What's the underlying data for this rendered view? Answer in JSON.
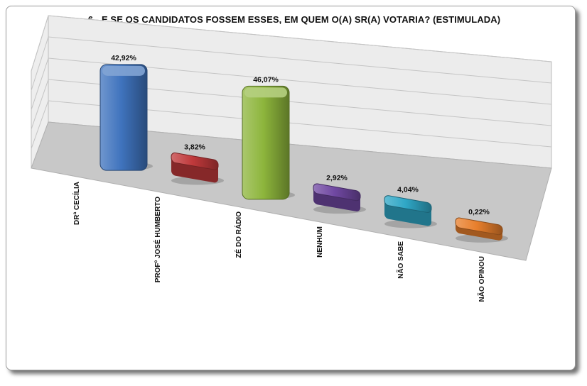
{
  "chart_data": {
    "type": "bar",
    "title": "6 - E SE OS CANDIDATOS FOSSEM ESSES, EM QUEM O(A) SR(A) VOTARIA? (ESTIMULADA)",
    "categories": [
      "DRª CECÍLIA",
      "PROFº JOSÉ HUMBERTO",
      "ZÉ DO RÁDIO",
      "NENHUM",
      "NÃO SABE",
      "NÃO OPINOU"
    ],
    "values": [
      42.92,
      3.82,
      46.07,
      2.92,
      4.04,
      0.22
    ],
    "value_labels": [
      "42,92%",
      "3,82%",
      "46,07%",
      "2,92%",
      "4,04%",
      "0,22%"
    ],
    "colors": [
      "#3f73bd",
      "#c0393b",
      "#8db53c",
      "#7048a2",
      "#2fa7c6",
      "#e87f2c"
    ],
    "ylim": [
      0,
      50
    ],
    "grid": true,
    "legend": "none",
    "style": "3d-column"
  }
}
